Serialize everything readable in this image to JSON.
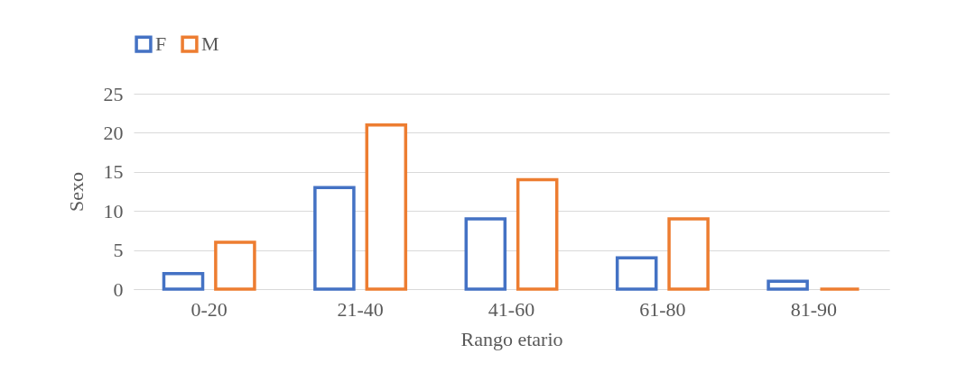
{
  "chart_data": {
    "type": "bar",
    "xlabel": "Rango etario",
    "ylabel": "Sexo",
    "categories": [
      "0-20",
      "21-40",
      "41-60",
      "61-80",
      "81-90"
    ],
    "series": [
      {
        "name": "F",
        "color": "#4472c4",
        "values": [
          2,
          13,
          9,
          4,
          1
        ]
      },
      {
        "name": "M",
        "color": "#ed7d31",
        "values": [
          6,
          21,
          14,
          9,
          0
        ]
      }
    ],
    "ylim": [
      0,
      25
    ],
    "yticks": [
      0,
      5,
      10,
      15,
      20,
      25
    ],
    "grid": "y",
    "legend": "top"
  }
}
